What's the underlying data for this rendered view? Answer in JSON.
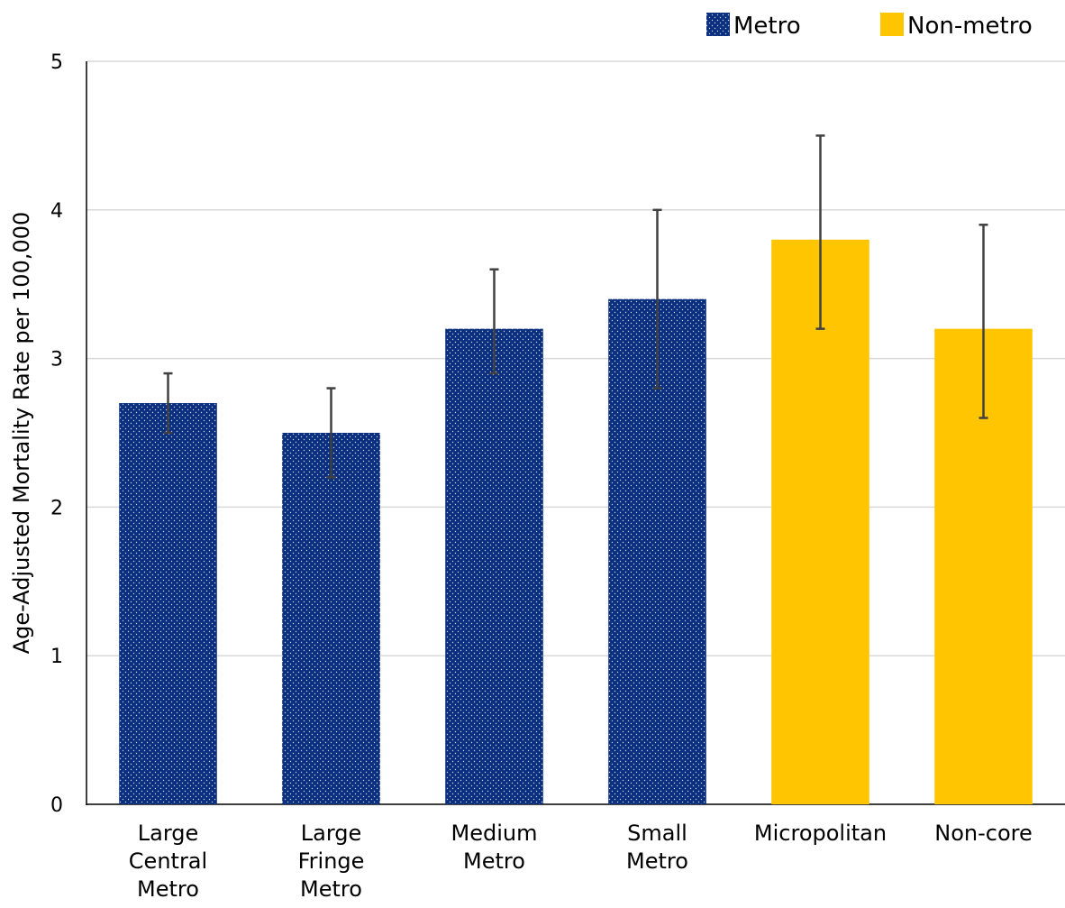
{
  "chart_data": {
    "type": "bar",
    "title": "",
    "xlabel": "",
    "ylabel": "Age-Adjusted Mortality Rate per 100,000",
    "ylim": [
      0,
      5
    ],
    "yticks": [
      "0",
      "1",
      "2",
      "3",
      "4",
      "5"
    ],
    "grid": true,
    "legend_position": "top-right",
    "categories": [
      [
        "Large",
        "Central",
        "Metro"
      ],
      [
        "Large",
        "Fringe",
        "Metro"
      ],
      [
        "Medium",
        "Metro"
      ],
      [
        "Small",
        "Metro"
      ],
      [
        "Micropolitan"
      ],
      [
        "Non-core"
      ]
    ],
    "values": [
      2.7,
      2.5,
      3.2,
      3.4,
      3.8,
      3.2
    ],
    "error_low": [
      2.5,
      2.2,
      2.9,
      2.8,
      3.2,
      2.6
    ],
    "error_high": [
      2.9,
      2.8,
      3.6,
      4.0,
      4.5,
      3.9
    ],
    "groups": [
      "metro",
      "metro",
      "metro",
      "metro",
      "nonmetro",
      "nonmetro"
    ],
    "legend": [
      {
        "key": "metro",
        "label": "Metro",
        "color": "#0b2f7f",
        "pattern": "dotted"
      },
      {
        "key": "nonmetro",
        "label": "Non-metro",
        "color": "#ffc500",
        "pattern": "solid"
      }
    ]
  }
}
